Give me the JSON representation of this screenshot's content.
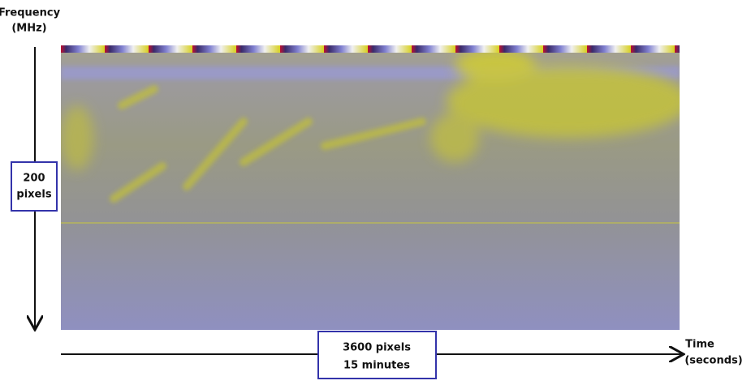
{
  "y_axis": {
    "label": [
      "Frequency",
      "(MHz)"
    ]
  },
  "x_axis": {
    "label": [
      "Time",
      "(seconds)"
    ]
  },
  "annotations": {
    "height": [
      "200",
      "pixels"
    ],
    "width": [
      "3600 pixels",
      "15 minutes"
    ]
  }
}
